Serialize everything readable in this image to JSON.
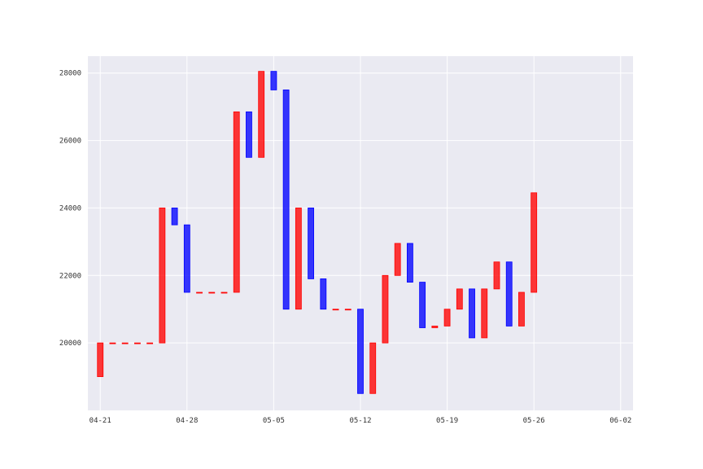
{
  "chart_data": {
    "type": "bar",
    "chart_kind": "candlestick-bodies",
    "title": "",
    "xlabel": "",
    "ylabel": "",
    "x_range": [
      "2026-04-20",
      "2026-06-03"
    ],
    "ylim": [
      18000,
      28500
    ],
    "yticks": [
      20000,
      22000,
      24000,
      26000,
      28000
    ],
    "xticks": [
      "04-21",
      "04-28",
      "05-05",
      "05-12",
      "05-19",
      "05-26",
      "06-02"
    ],
    "xtick_dates": [
      "2026-04-21",
      "2026-04-28",
      "2026-05-05",
      "2026-05-12",
      "2026-05-19",
      "2026-05-26",
      "2026-06-02"
    ],
    "grid": true,
    "colors": {
      "up": "#ff0000",
      "down": "#0000ff",
      "plot_bg": "#eaeaf2",
      "grid": "#ffffff"
    },
    "candles": [
      {
        "date": "2026-04-21",
        "open": 19000,
        "close": 20000
      },
      {
        "date": "2026-04-22",
        "open": 20000,
        "close": 20000
      },
      {
        "date": "2026-04-23",
        "open": 20000,
        "close": 20000
      },
      {
        "date": "2026-04-24",
        "open": 20000,
        "close": 20000
      },
      {
        "date": "2026-04-25",
        "open": 20000,
        "close": 20000
      },
      {
        "date": "2026-04-26",
        "open": 20000,
        "close": 24000
      },
      {
        "date": "2026-04-27",
        "open": 24000,
        "close": 23500
      },
      {
        "date": "2026-04-28",
        "open": 23500,
        "close": 21500
      },
      {
        "date": "2026-04-29",
        "open": 21500,
        "close": 21500
      },
      {
        "date": "2026-04-30",
        "open": 21500,
        "close": 21500
      },
      {
        "date": "2026-05-01",
        "open": 21500,
        "close": 21500
      },
      {
        "date": "2026-05-02",
        "open": 21500,
        "close": 26850
      },
      {
        "date": "2026-05-03",
        "open": 26850,
        "close": 25500
      },
      {
        "date": "2026-05-04",
        "open": 25500,
        "close": 28050
      },
      {
        "date": "2026-05-05",
        "open": 28050,
        "close": 27500
      },
      {
        "date": "2026-05-06",
        "open": 27500,
        "close": 21000
      },
      {
        "date": "2026-05-07",
        "open": 21000,
        "close": 24000
      },
      {
        "date": "2026-05-08",
        "open": 24000,
        "close": 21900
      },
      {
        "date": "2026-05-09",
        "open": 21900,
        "close": 21000
      },
      {
        "date": "2026-05-10",
        "open": 21000,
        "close": 21000
      },
      {
        "date": "2026-05-11",
        "open": 21000,
        "close": 21000
      },
      {
        "date": "2026-05-12",
        "open": 21000,
        "close": 18500
      },
      {
        "date": "2026-05-13",
        "open": 18500,
        "close": 20000
      },
      {
        "date": "2026-05-14",
        "open": 20000,
        "close": 22000
      },
      {
        "date": "2026-05-15",
        "open": 22000,
        "close": 22950
      },
      {
        "date": "2026-05-16",
        "open": 22950,
        "close": 21800
      },
      {
        "date": "2026-05-17",
        "open": 21800,
        "close": 20450
      },
      {
        "date": "2026-05-18",
        "open": 20450,
        "close": 20500
      },
      {
        "date": "2026-05-19",
        "open": 20500,
        "close": 21000
      },
      {
        "date": "2026-05-20",
        "open": 21000,
        "close": 21600
      },
      {
        "date": "2026-05-21",
        "open": 21600,
        "close": 20150
      },
      {
        "date": "2026-05-22",
        "open": 20150,
        "close": 21600
      },
      {
        "date": "2026-05-23",
        "open": 21600,
        "close": 22400
      },
      {
        "date": "2026-05-24",
        "open": 22400,
        "close": 20500
      },
      {
        "date": "2026-05-25",
        "open": 20500,
        "close": 21500
      },
      {
        "date": "2026-05-26",
        "open": 21500,
        "close": 24450
      }
    ]
  }
}
